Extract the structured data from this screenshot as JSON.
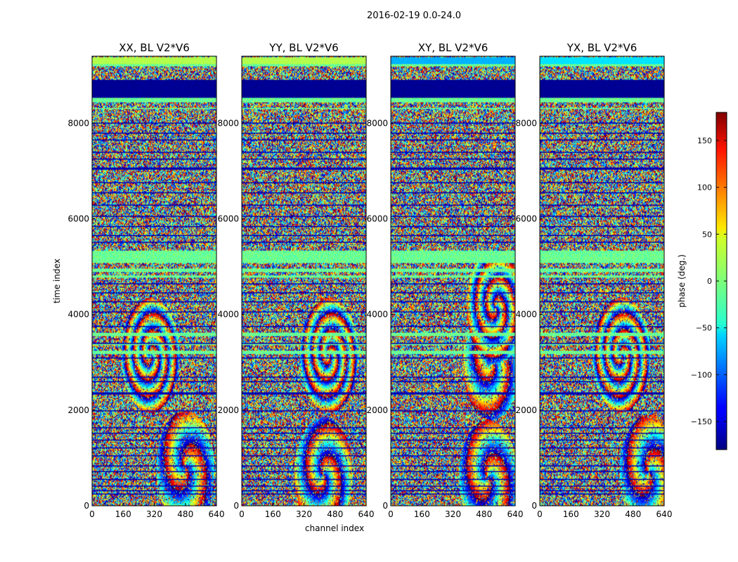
{
  "figure": {
    "suptitle": "2016-02-19 0.0-24.0"
  },
  "chart_data": {
    "type": "heatmap",
    "colormap": "jet",
    "panels": [
      {
        "title": "XX, BL V2*V6",
        "pol": "XX",
        "structure": {
          "band_rows": [
            [
              8300,
              8330
            ],
            [
              8430,
              8520
            ],
            [
              9200,
              9230
            ],
            [
              5080,
              5330
            ],
            [
              3170,
              3250
            ],
            [
              3350,
              3400
            ],
            [
              3550,
              3620
            ],
            [
              4880,
              4950
            ],
            [
              4780,
              4820
            ]
          ],
          "line_rows": [
            [
              8520,
              8900,
              0.02
            ],
            [
              9230,
              9380,
              0.55
            ]
          ],
          "fringes": [
            [
              480,
              800,
              1.2
            ],
            [
              300,
              3150,
              0.5
            ]
          ]
        }
      },
      {
        "title": "YY, BL V2*V6",
        "pol": "YY",
        "structure": {
          "band_rows": [
            [
              8300,
              8330
            ],
            [
              8430,
              8520
            ],
            [
              9200,
              9230
            ],
            [
              5080,
              5330
            ],
            [
              3170,
              3250
            ],
            [
              3350,
              3400
            ],
            [
              3550,
              3620
            ],
            [
              4880,
              4950
            ],
            [
              4780,
              4820
            ]
          ],
          "line_rows": [
            [
              8520,
              8900,
              0.02
            ],
            [
              9230,
              9380,
              0.55
            ]
          ],
          "fringes": [
            [
              420,
              650,
              1.0
            ],
            [
              450,
              3150,
              0.5
            ]
          ]
        }
      },
      {
        "title": "XY, BL V2*V6",
        "pol": "XY",
        "structure": {
          "band_rows": [
            [
              8300,
              8330
            ],
            [
              8430,
              8520
            ],
            [
              9200,
              9230
            ],
            [
              5080,
              5330
            ],
            [
              3170,
              3250
            ],
            [
              3350,
              3400
            ],
            [
              3550,
              3620
            ],
            [
              4880,
              4950
            ],
            [
              4780,
              4820
            ]
          ],
          "line_rows": [
            [
              8520,
              8900,
              0.02
            ],
            [
              9230,
              9380,
              0.3
            ]
          ],
          "fringes": [
            [
              500,
              600,
              1.2
            ],
            [
              520,
              3000,
              1.0
            ],
            [
              540,
              4150,
              0.6
            ]
          ]
        }
      },
      {
        "title": "YX, BL V2*V6",
        "pol": "YX",
        "structure": {
          "band_rows": [
            [
              8300,
              8330
            ],
            [
              8430,
              8520
            ],
            [
              9200,
              9230
            ],
            [
              5080,
              5330
            ],
            [
              3170,
              3250
            ],
            [
              3350,
              3400
            ],
            [
              3550,
              3620
            ],
            [
              4880,
              4950
            ],
            [
              4780,
              4820
            ]
          ],
          "line_rows": [
            [
              8520,
              8900,
              0.02
            ],
            [
              9230,
              9380,
              0.35
            ]
          ],
          "fringes": [
            [
              560,
              700,
              1.2
            ],
            [
              420,
              3150,
              0.5
            ]
          ]
        }
      }
    ],
    "xlabel": "channel index",
    "ylabel": "time index",
    "xlim": [
      0,
      640
    ],
    "ylim": [
      0,
      9400
    ],
    "xticks": [
      0,
      160,
      320,
      480,
      640
    ],
    "yticks": [
      0,
      2000,
      4000,
      6000,
      8000
    ],
    "xtick_labels": [
      "0",
      "160",
      "320",
      "480",
      "640"
    ],
    "ytick_labels": [
      "0",
      "2000",
      "4000",
      "6000",
      "8000"
    ],
    "colorbar": {
      "label": "phase (deg.)",
      "range": [
        -180,
        180
      ],
      "ticks": [
        -150,
        -100,
        -50,
        0,
        50,
        100,
        150
      ],
      "tick_labels": [
        "−150",
        "−100",
        "−50",
        "0",
        "50",
        "100",
        "150"
      ]
    }
  }
}
